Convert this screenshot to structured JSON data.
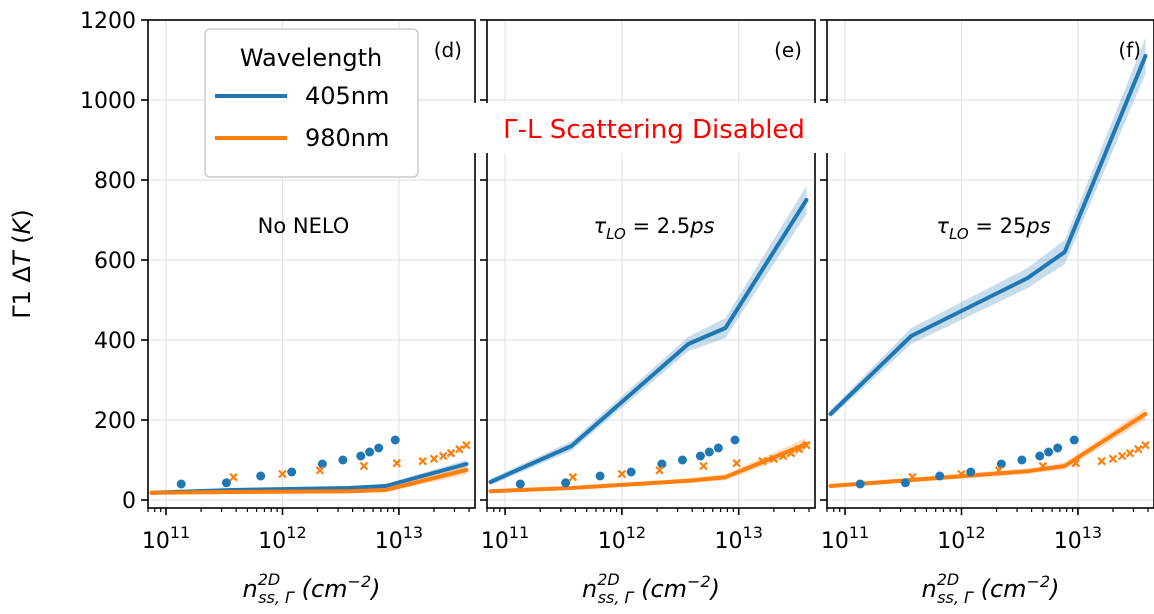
{
  "chart_data": {
    "type": "line",
    "banner": "Γ-L Scattering Disabled",
    "ylabel": "Γ1 ΔT (K)",
    "ylabel_parts": {
      "main": "Γ1 Δ",
      "var": "T",
      "unit": "(K)"
    },
    "xlabel_parts": {
      "var": "n",
      "sup": "2D",
      "sub": "ss, Γ",
      "unit_base": "(cm",
      "unit_exp": "−2",
      "unit_close": ")"
    },
    "xscale": "log",
    "xlim": [
      70000000000.0,
      45000000000000.0
    ],
    "ylim": [
      -20,
      1200
    ],
    "yticks": [
      0,
      200,
      400,
      600,
      800,
      1000,
      1200
    ],
    "ytick_labels": [
      "0",
      "200",
      "400",
      "600",
      "800",
      "1000",
      "1200"
    ],
    "xticks": [
      100000000000.0,
      1000000000000.0,
      10000000000000.0
    ],
    "xtick_labels": [
      {
        "base": "10",
        "exp": "11"
      },
      {
        "base": "10",
        "exp": "12"
      },
      {
        "base": "10",
        "exp": "13"
      }
    ],
    "grid": true,
    "legend": {
      "title": "Wavelength",
      "placement": "top-left",
      "entries": [
        {
          "label": "405nm",
          "color": "#1f77b4"
        },
        {
          "label": "980nm",
          "color": "#ff7f0e"
        }
      ]
    },
    "markers": {
      "405nm": {
        "symbol": "circle",
        "x": [
          135000000000.0,
          330000000000.0,
          650000000000.0,
          1200000000000.0,
          2200000000000.0,
          3300000000000.0,
          4700000000000.0,
          5600000000000.0,
          6700000000000.0,
          9300000000000.0
        ],
        "y": [
          40,
          43,
          60,
          70,
          90,
          100,
          110,
          120,
          130,
          150
        ]
      },
      "980nm": {
        "symbol": "x",
        "x": [
          380000000000.0,
          1000000000000.0,
          2100000000000.0,
          5000000000000.0,
          9600000000000.0,
          16000000000000.0,
          20000000000000.0,
          24000000000000.0,
          28000000000000.0,
          33000000000000.0,
          38000000000000.0
        ],
        "y": [
          57,
          65,
          74,
          85,
          92,
          97,
          103,
          110,
          117,
          127,
          137
        ]
      }
    },
    "panels": [
      {
        "label": "(d)",
        "annotation": "No NELO",
        "series": [
          {
            "name": "405nm",
            "x": [
              75000000000.0,
              370000000000.0,
              3700000000000.0,
              7700000000000.0,
              38000000000000.0
            ],
            "y": [
              18,
              25,
              30,
              35,
              90
            ],
            "band": [
              5,
              5,
              5,
              5,
              10
            ]
          },
          {
            "name": "980nm",
            "x": [
              75000000000.0,
              370000000000.0,
              3700000000000.0,
              7700000000000.0,
              38000000000000.0
            ],
            "y": [
              18,
              20,
              22,
              25,
              75
            ],
            "band": [
              5,
              5,
              5,
              5,
              12
            ]
          }
        ]
      },
      {
        "label": "(e)",
        "annotation_parts": {
          "tau": "τ",
          "sub": "LO",
          "rest": " = 2.5",
          "unit": "ps"
        },
        "series": [
          {
            "name": "405nm",
            "x": [
              75000000000.0,
              370000000000.0,
              3700000000000.0,
              7700000000000.0,
              38000000000000.0
            ],
            "y": [
              45,
              135,
              390,
              430,
              750
            ],
            "band": [
              8,
              12,
              18,
              25,
              35
            ]
          },
          {
            "name": "980nm",
            "x": [
              75000000000.0,
              370000000000.0,
              3700000000000.0,
              7700000000000.0,
              38000000000000.0
            ],
            "y": [
              22,
              30,
              48,
              57,
              140
            ],
            "band": [
              5,
              5,
              6,
              8,
              15
            ]
          }
        ]
      },
      {
        "label": "(f)",
        "annotation_parts": {
          "tau": "τ",
          "sub": "LO",
          "rest": " = 25",
          "unit": "ps"
        },
        "series": [
          {
            "name": "405nm",
            "x": [
              75000000000.0,
              370000000000.0,
              3700000000000.0,
              7700000000000.0,
              38000000000000.0
            ],
            "y": [
              215,
              410,
              555,
              620,
              1110
            ],
            "band": [
              10,
              20,
              25,
              30,
              45
            ]
          },
          {
            "name": "980nm",
            "x": [
              75000000000.0,
              370000000000.0,
              3700000000000.0,
              7700000000000.0,
              38000000000000.0
            ],
            "y": [
              35,
              50,
              72,
              85,
              215
            ],
            "band": [
              5,
              6,
              7,
              9,
              15
            ]
          }
        ]
      }
    ]
  }
}
